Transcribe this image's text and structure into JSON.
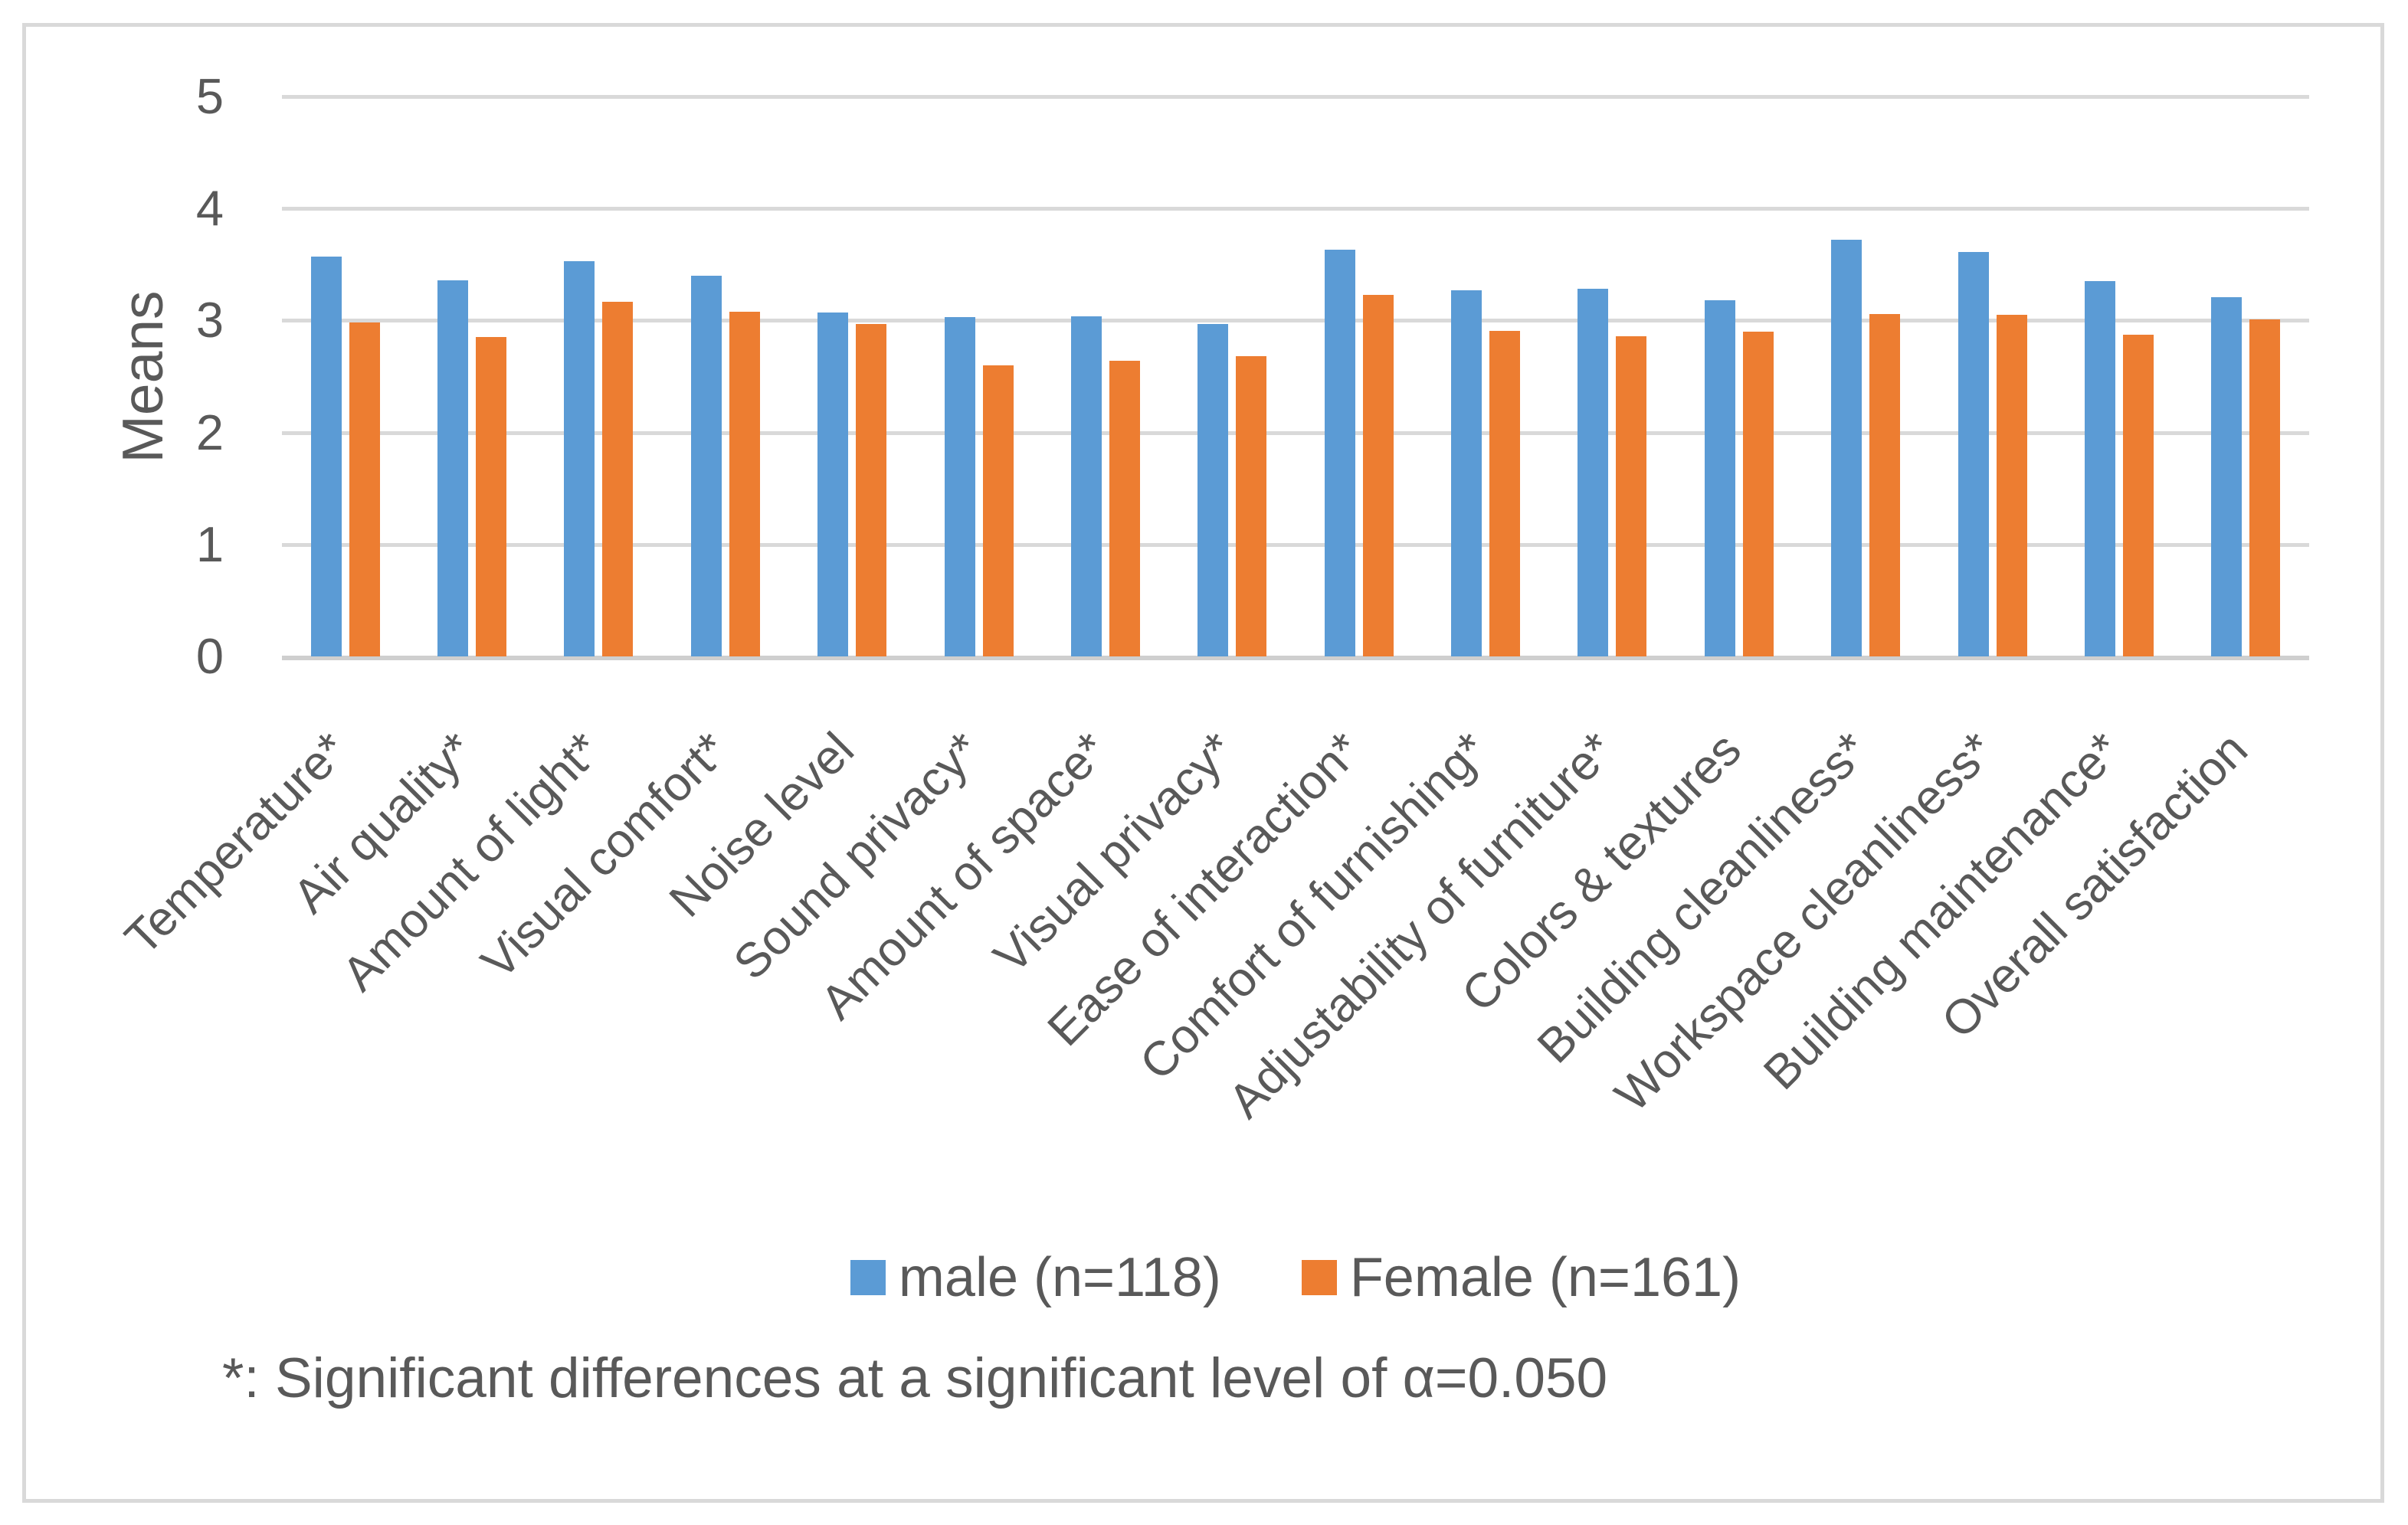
{
  "chart_data": {
    "type": "bar",
    "title": "",
    "xlabel": "",
    "ylabel": "Means",
    "ylim": [
      0,
      5
    ],
    "y_ticks": [
      0,
      1,
      2,
      3,
      4,
      5
    ],
    "grid": "horizontal-only",
    "legend_position": "bottom-center",
    "footnote": "*: Significant differences at a significant level of α=0.050",
    "categories": [
      "Temperature*",
      "Air quality*",
      "Amount of light*",
      "Visual comfort*",
      "Noise level",
      "Sound privacy*",
      "Amount of space*",
      "Visual privacy*",
      "Ease of interaction*",
      "Comfort of furnishing*",
      "Adjustability of furniture*",
      "Colors & textures",
      "Building cleanliness*",
      "Workspace cleanliness*",
      "Building maintenance*",
      "Overall satisfaction"
    ],
    "series": [
      {
        "name": "male (n=118)",
        "color": "#5B9BD5",
        "values": [
          3.57,
          3.36,
          3.53,
          3.4,
          3.07,
          3.03,
          3.04,
          2.97,
          3.63,
          3.27,
          3.28,
          3.18,
          3.72,
          3.61,
          3.35,
          3.21
        ]
      },
      {
        "name": "Female (n=161)",
        "color": "#ED7D31",
        "values": [
          2.98,
          2.85,
          3.17,
          3.08,
          2.97,
          2.6,
          2.64,
          2.68,
          3.23,
          2.91,
          2.86,
          2.9,
          3.06,
          3.05,
          2.87,
          3.01
        ]
      }
    ],
    "colors": {
      "gridline": "#d9d9d9",
      "axis_text": "#595959",
      "frame_border": "#d9d9d9",
      "background": "#ffffff"
    }
  }
}
